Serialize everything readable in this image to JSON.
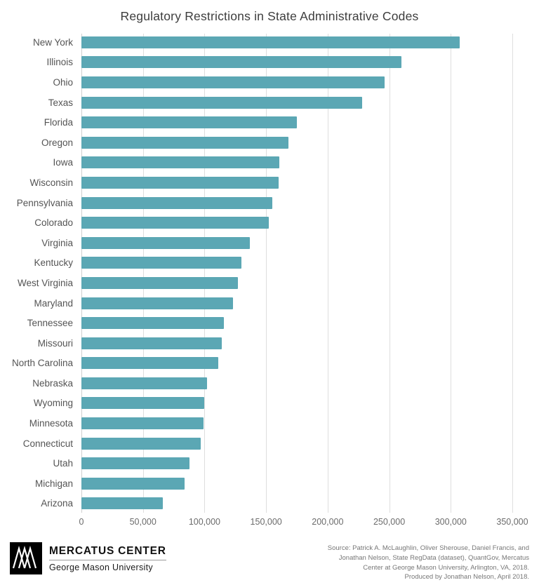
{
  "title": "Regulatory Restrictions in State Administrative Codes",
  "colors": {
    "bar": "#5ba7b4",
    "grid": "#dedede",
    "title_text": "#3d3d3d",
    "axis_text": "#6b6b6b",
    "label_text": "#545454"
  },
  "chart_data": {
    "type": "bar",
    "orientation": "horizontal",
    "title": "Regulatory Restrictions in State Administrative Codes",
    "xlabel": "",
    "ylabel": "",
    "xlim": [
      0,
      350000
    ],
    "grid": "vertical",
    "legend": "none",
    "categories": [
      "New York",
      "Illinois",
      "Ohio",
      "Texas",
      "Florida",
      "Oregon",
      "Iowa",
      "Wisconsin",
      "Pennsylvania",
      "Colorado",
      "Virginia",
      "Kentucky",
      "West Virginia",
      "Maryland",
      "Tennessee",
      "Missouri",
      "North Carolina",
      "Nebraska",
      "Wyoming",
      "Minnesota",
      "Connecticut",
      "Utah",
      "Michigan",
      "Arizona"
    ],
    "values": [
      307000,
      260000,
      246000,
      228000,
      175000,
      168000,
      161000,
      160000,
      155000,
      152000,
      137000,
      130000,
      127000,
      123000,
      116000,
      114000,
      111000,
      102000,
      100000,
      99000,
      97000,
      88000,
      84000,
      66000
    ],
    "x_ticks": [
      0,
      50000,
      100000,
      150000,
      200000,
      250000,
      300000,
      350000
    ],
    "x_tick_labels": [
      "0",
      "50,000",
      "100,000",
      "150,000",
      "200,000",
      "250,000",
      "300,000",
      "350,000"
    ]
  },
  "footer": {
    "logo_title": "MERCATUS CENTER",
    "logo_subtitle": "George Mason University",
    "source_lines": [
      "Source: Patrick A. McLaughlin, Oliver Sherouse, Daniel Francis, and",
      "Jonathan Nelson, State RegData (dataset), QuantGov, Mercatus",
      "Center at George Mason University, Arlington, VA, 2018.",
      "Produced by Jonathan Nelson, April 2018."
    ]
  }
}
